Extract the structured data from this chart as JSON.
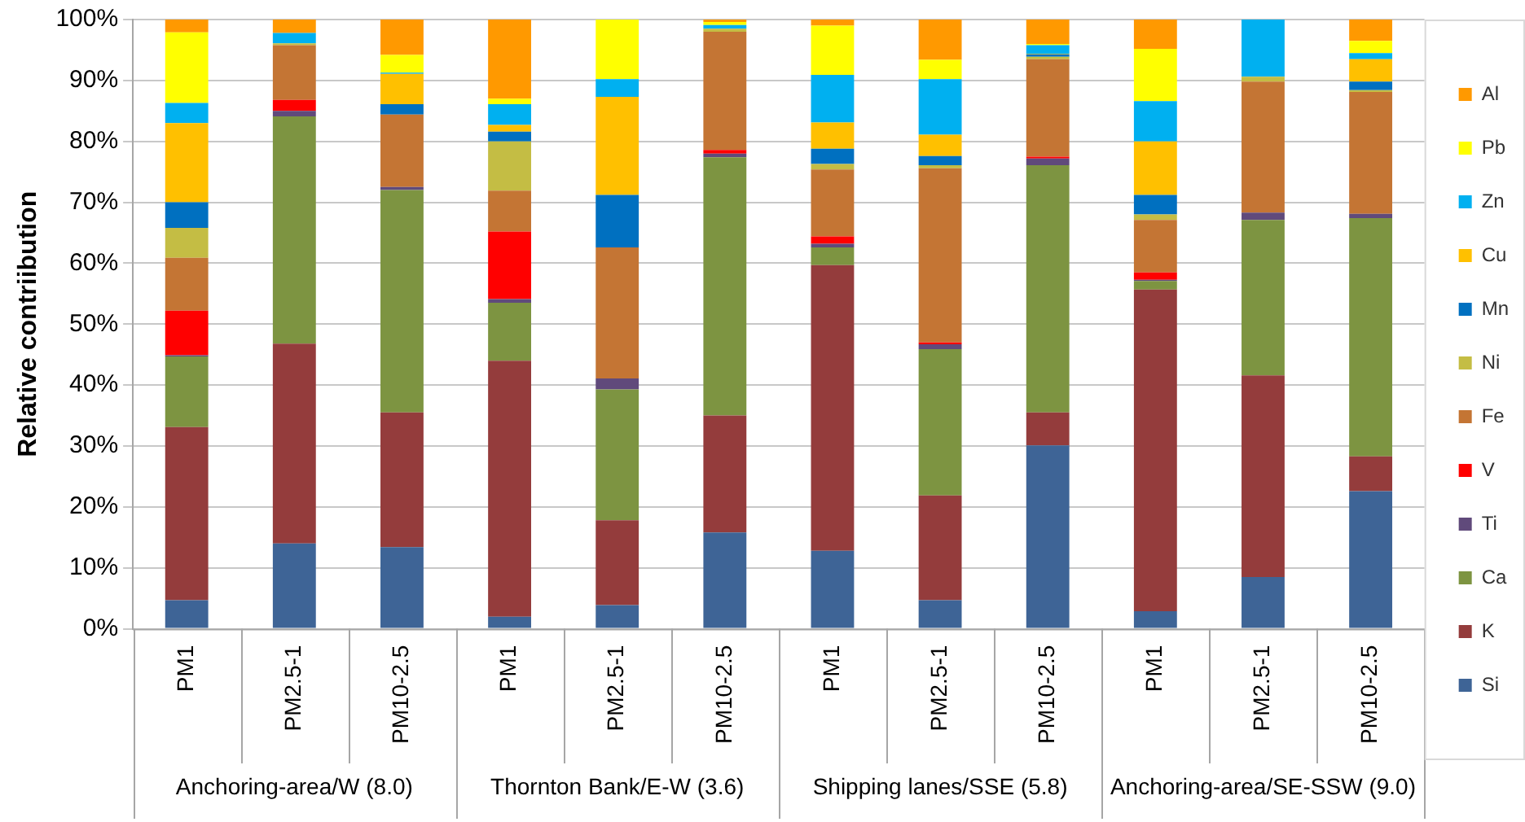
{
  "chart_data": {
    "type": "bar",
    "stacked": true,
    "ylabel": "Relative contriibution",
    "categories": [
      "PM1",
      "PM2.5-1",
      "PM10-2.5",
      "PM1",
      "PM2.5-1",
      "PM10-2.5",
      "PM1",
      "PM2.5-1",
      "PM10-2.5",
      "PM1",
      "PM2.5-1",
      "PM10-2.5"
    ],
    "annotations": [
      "Anchoring-area/W (8.0)",
      "Thornton Bank/E-W (3.6)",
      "Shipping lanes/SSE (5.8)",
      "Anchoring-area/SE-SSW (9.0)"
    ],
    "series": [
      {
        "name": "Si",
        "color": "#3e6496",
        "values": [
          4.7,
          14.0,
          13.4,
          2.0,
          3.9,
          15.8,
          12.8,
          4.7,
          30.1,
          2.9,
          8.5,
          22.6
        ]
      },
      {
        "name": "K",
        "color": "#943c3c",
        "values": [
          28.4,
          32.8,
          22.1,
          42.0,
          13.9,
          19.2,
          46.9,
          17.2,
          5.4,
          52.8,
          33.1,
          5.7
        ]
      },
      {
        "name": "Ca",
        "color": "#7d9441",
        "values": [
          11.6,
          37.3,
          36.5,
          9.5,
          21.5,
          42.4,
          2.9,
          24.0,
          40.6,
          1.4,
          25.5,
          39.1
        ]
      },
      {
        "name": "Ti",
        "color": "#604a7b",
        "values": [
          0.2,
          0.9,
          0.5,
          0.6,
          1.8,
          0.6,
          0.6,
          0.8,
          1.1,
          0.2,
          1.2,
          0.7
        ]
      },
      {
        "name": "V",
        "color": "#ff0000",
        "values": [
          7.3,
          1.8,
          0,
          11.1,
          0,
          0.6,
          1.2,
          0.3,
          0.3,
          1.2,
          0,
          0
        ]
      },
      {
        "name": "Fe",
        "color": "#c47534",
        "values": [
          8.7,
          9.0,
          11.9,
          6.7,
          21.5,
          19.4,
          11.0,
          28.6,
          16.0,
          8.6,
          21.5,
          20.0
        ]
      },
      {
        "name": "Ni",
        "color": "#c4bd44",
        "values": [
          4.9,
          0.3,
          0,
          8.1,
          0,
          0.5,
          0.9,
          0.5,
          0.4,
          0.9,
          0.8,
          0.3
        ]
      },
      {
        "name": "Mn",
        "color": "#0070c0",
        "values": [
          4.2,
          0,
          1.7,
          1.6,
          8.6,
          0,
          2.5,
          1.5,
          0.4,
          3.2,
          0,
          1.4
        ]
      },
      {
        "name": "Cu",
        "color": "#ffc000",
        "values": [
          13.0,
          0,
          5.0,
          1.1,
          16.1,
          0,
          4.3,
          3.5,
          0.1,
          8.8,
          0,
          3.7
        ]
      },
      {
        "name": "Zn",
        "color": "#00b0f0",
        "values": [
          3.3,
          1.7,
          0.2,
          3.4,
          2.9,
          0.6,
          7.8,
          9.1,
          1.4,
          6.6,
          9.4,
          1.0
        ]
      },
      {
        "name": "Pb",
        "color": "#ffff00",
        "values": [
          11.6,
          0,
          2.9,
          0.9,
          9.8,
          0.5,
          8.1,
          3.2,
          0.2,
          8.6,
          0,
          2.0
        ]
      },
      {
        "name": "Al",
        "color": "#ff9900",
        "values": [
          2.1,
          2.2,
          5.8,
          13.0,
          0,
          0.4,
          1.0,
          6.6,
          4.0,
          4.8,
          0,
          3.5
        ]
      }
    ],
    "ylim": [
      0,
      100
    ],
    "yticks": [
      {
        "value": 0,
        "label": "0%"
      },
      {
        "value": 10,
        "label": "10%"
      },
      {
        "value": 20,
        "label": "20%"
      },
      {
        "value": 30,
        "label": "30%"
      },
      {
        "value": 40,
        "label": "40%"
      },
      {
        "value": 50,
        "label": "50%"
      },
      {
        "value": 60,
        "label": "60%"
      },
      {
        "value": 70,
        "label": "70%"
      },
      {
        "value": 80,
        "label": "80%"
      },
      {
        "value": 90,
        "label": "90%"
      },
      {
        "value": 100,
        "label": "100%"
      }
    ],
    "grid": "y",
    "legend": "right"
  }
}
